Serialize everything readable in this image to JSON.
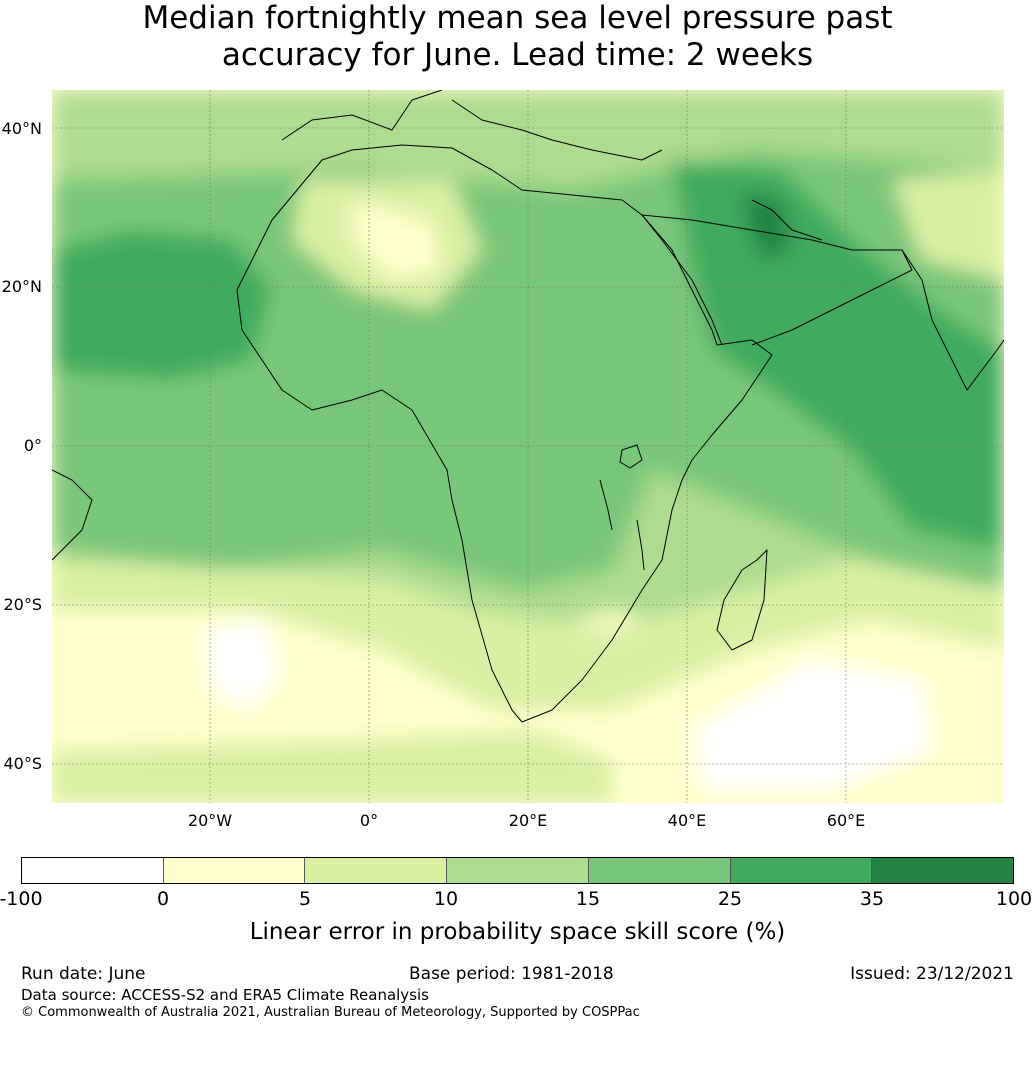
{
  "title_line1": "Median fortnightly mean sea level pressure past",
  "title_line2": "accuracy for June. Lead time: 2 weeks",
  "lat_labels": [
    "40°N",
    "20°N",
    "0°",
    "20°S",
    "40°S"
  ],
  "lon_labels": [
    "20°W",
    "0°",
    "20°E",
    "40°E",
    "60°E"
  ],
  "colorbar": {
    "ticks": [
      "-100",
      "0",
      "5",
      "10",
      "15",
      "25",
      "35",
      "100"
    ],
    "colors": [
      "#ffffff",
      "#ffffcc",
      "#d9f0a3",
      "#addd8e",
      "#78c679",
      "#41ab5d",
      "#238443"
    ],
    "label": "Linear error in probability space skill score (%)"
  },
  "footer": {
    "run_date": "Run date: June",
    "base_period": "Base period: 1981-2018",
    "issued": "Issued: 23/12/2021",
    "data_source": "Data source: ACCESS-S2 and ERA5 Climate Reanalysis",
    "copyright": "© Commonwealth of Australia 2021, Australian Bureau of Meteorology, Supported by COSPPac"
  }
}
